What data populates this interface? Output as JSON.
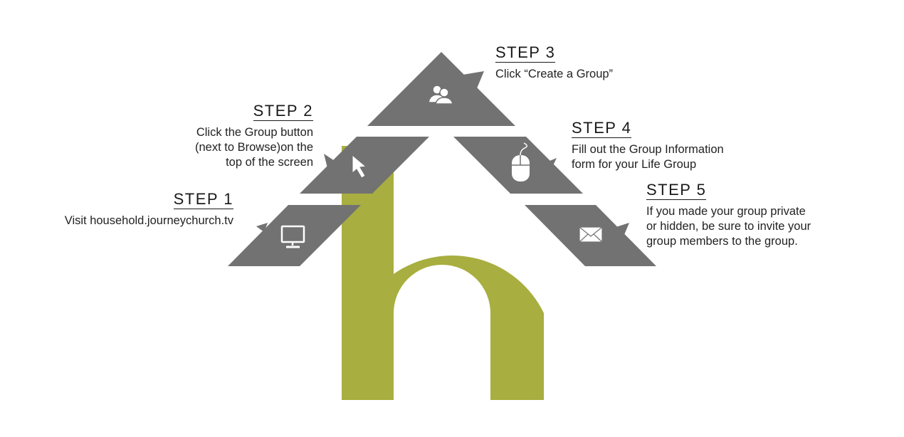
{
  "colors": {
    "green": "#a8ae3f",
    "gray": "#727272",
    "icon": "#ffffff"
  },
  "steps": [
    {
      "title": "STEP 1",
      "description": [
        "Visit household.journeychurch.tv"
      ],
      "icon": "monitor-icon"
    },
    {
      "title": "STEP 2",
      "description": [
        "Click the Group button",
        "(next to Browse)on the",
        "top of the screen"
      ],
      "icon": "cursor-icon"
    },
    {
      "title": "STEP 3",
      "description": [
        "Click “Create a Group”"
      ],
      "icon": "group-icon"
    },
    {
      "title": "STEP 4",
      "description": [
        "Fill out the Group Information",
        "form for your Life Group"
      ],
      "icon": "mouse-icon"
    },
    {
      "title": "STEP 5",
      "description": [
        "If you made your group private",
        "or hidden, be sure to invite your",
        "group members to the group."
      ],
      "icon": "envelope-icon"
    }
  ]
}
